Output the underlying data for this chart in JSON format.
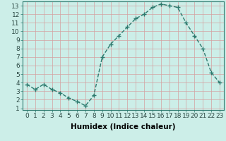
{
  "x": [
    0,
    1,
    2,
    3,
    4,
    5,
    6,
    7,
    8,
    9,
    10,
    11,
    12,
    13,
    14,
    15,
    16,
    17,
    18,
    19,
    20,
    21,
    22,
    23
  ],
  "y": [
    3.8,
    3.2,
    3.8,
    3.2,
    2.8,
    2.2,
    1.8,
    1.3,
    2.5,
    7.0,
    8.5,
    9.5,
    10.5,
    11.5,
    12.0,
    12.8,
    13.2,
    13.0,
    12.8,
    11.0,
    9.5,
    8.0,
    5.2,
    4.0
  ],
  "line_color": "#2d7a6e",
  "marker": "+",
  "bg_color": "#cceee8",
  "xlabel": "Humidex (Indice chaleur)",
  "xlim": [
    -0.5,
    23.5
  ],
  "ylim": [
    0.8,
    13.5
  ],
  "yticks": [
    1,
    2,
    3,
    4,
    5,
    6,
    7,
    8,
    9,
    10,
    11,
    12,
    13
  ],
  "xticks": [
    0,
    1,
    2,
    3,
    4,
    5,
    6,
    7,
    8,
    9,
    10,
    11,
    12,
    13,
    14,
    15,
    16,
    17,
    18,
    19,
    20,
    21,
    22,
    23
  ],
  "grid_color_major": "#d4a0a0",
  "grid_color_minor": "#d4a0a0",
  "label_fontsize": 7.5,
  "tick_fontsize": 6.5,
  "line_width": 1.0,
  "marker_size": 4,
  "marker_edge_width": 1.0
}
